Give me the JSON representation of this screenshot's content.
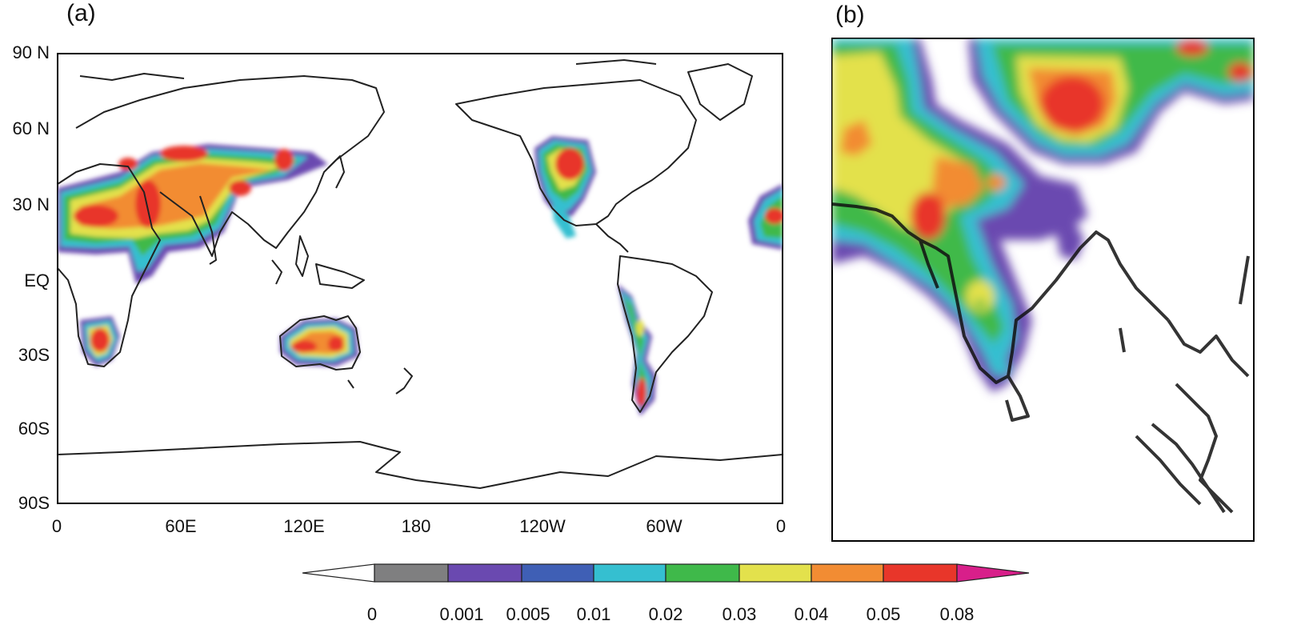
{
  "panels": [
    {
      "id": "a",
      "label": "(a)"
    },
    {
      "id": "b",
      "label": "(b)"
    }
  ],
  "map_a": {
    "lat_ticks": [
      "90 N",
      "60 N",
      "30 N",
      "EQ",
      "30S",
      "60S",
      "90S"
    ],
    "lon_ticks": [
      "0",
      "60E",
      "120E",
      "180",
      "120W",
      "60W",
      "0"
    ]
  },
  "colorbar": {
    "labels": [
      "0",
      "0.001",
      "0.005",
      "0.01",
      "0.02",
      "0.03",
      "0.04",
      "0.05",
      "0.08"
    ],
    "colors": [
      "#ffffff",
      "#7f7f80",
      "#6a49b0",
      "#3f5fb5",
      "#35bfd0",
      "#3fb94a",
      "#e3e14c",
      "#f28c33",
      "#e8362a",
      "#d81f8a"
    ]
  }
}
